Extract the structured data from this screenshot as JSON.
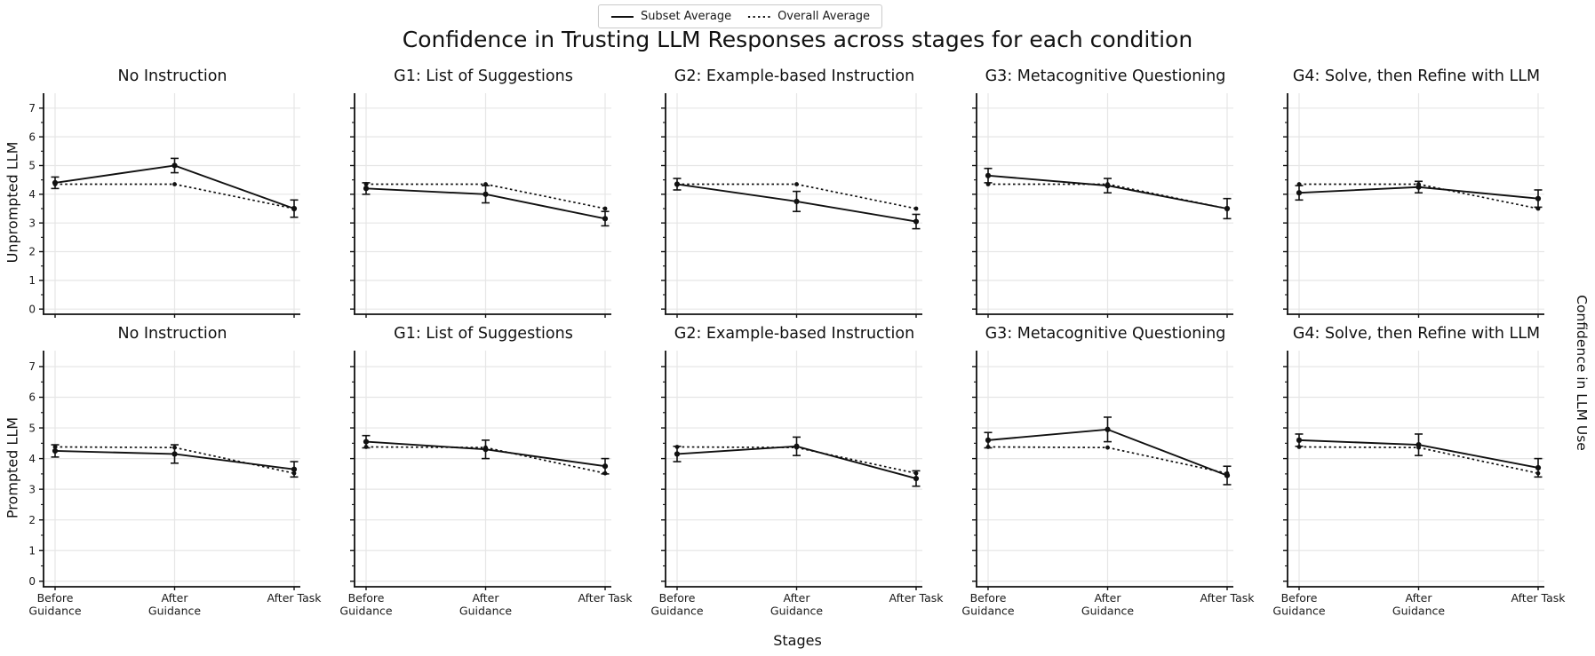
{
  "page": {
    "title": "Confidence in Trusting LLM Responses across stages for each condition",
    "xlabel": "Stages",
    "right_ylabel": "Confidence in LLM Use",
    "row_labels": [
      "Unprompted LLM",
      "Prompted LLM"
    ]
  },
  "chart_data": {
    "type": "line",
    "layout": "2x5 small multiples",
    "title": "Confidence in Trusting LLM Responses across stages for each condition",
    "xlabel": "Stages",
    "right_ylabel": "Confidence in LLM Use",
    "categories": [
      "Before\nGuidance",
      "After\nGuidance",
      "After Task"
    ],
    "ylim": [
      0,
      7.5
    ],
    "yticks": [
      0,
      1,
      2,
      3,
      4,
      5,
      6,
      7
    ],
    "grid": true,
    "legend": {
      "position": "top center",
      "entries": [
        {
          "label": "Subset Average",
          "style": "solid"
        },
        {
          "label": "Overall Average",
          "style": "dotted"
        }
      ]
    },
    "rows": [
      {
        "row_label": "Unprompted LLM",
        "overall_average": [
          4.35,
          4.35,
          3.5
        ],
        "panels": [
          {
            "title": "No Instruction",
            "subset_average": [
              4.4,
              5.0,
              3.5
            ],
            "subset_err": [
              0.2,
              0.25,
              0.3
            ]
          },
          {
            "title": "G1: List of Suggestions",
            "subset_average": [
              4.2,
              4.0,
              3.15
            ],
            "subset_err": [
              0.2,
              0.3,
              0.25
            ]
          },
          {
            "title": "G2: Example-based Instruction",
            "subset_average": [
              4.35,
              3.75,
              3.05
            ],
            "subset_err": [
              0.2,
              0.35,
              0.25
            ]
          },
          {
            "title": "G3: Metacognitive Questioning",
            "subset_average": [
              4.65,
              4.3,
              3.5
            ],
            "subset_err": [
              0.25,
              0.25,
              0.35
            ]
          },
          {
            "title": "G4: Solve, then Refine with LLM",
            "subset_average": [
              4.05,
              4.25,
              3.85
            ],
            "subset_err": [
              0.25,
              0.2,
              0.3
            ]
          }
        ]
      },
      {
        "row_label": "Prompted LLM",
        "overall_average": [
          4.38,
          4.36,
          3.52
        ],
        "panels": [
          {
            "title": "No Instruction",
            "subset_average": [
              4.25,
              4.15,
              3.65
            ],
            "subset_err": [
              0.2,
              0.3,
              0.25
            ]
          },
          {
            "title": "G1: List of Suggestions",
            "subset_average": [
              4.55,
              4.3,
              3.75
            ],
            "subset_err": [
              0.2,
              0.3,
              0.25
            ]
          },
          {
            "title": "G2: Example-based Instruction",
            "subset_average": [
              4.15,
              4.4,
              3.35
            ],
            "subset_err": [
              0.25,
              0.3,
              0.25
            ]
          },
          {
            "title": "G3: Metacognitive Questioning",
            "subset_average": [
              4.6,
              4.95,
              3.45
            ],
            "subset_err": [
              0.25,
              0.4,
              0.3
            ]
          },
          {
            "title": "G4: Solve, then Refine with LLM",
            "subset_average": [
              4.6,
              4.45,
              3.7
            ],
            "subset_err": [
              0.2,
              0.35,
              0.3
            ]
          }
        ]
      }
    ],
    "colors": {
      "line": "#111111",
      "gridline": "#e6e6e6",
      "legend_border": "#c9c9c9"
    }
  }
}
